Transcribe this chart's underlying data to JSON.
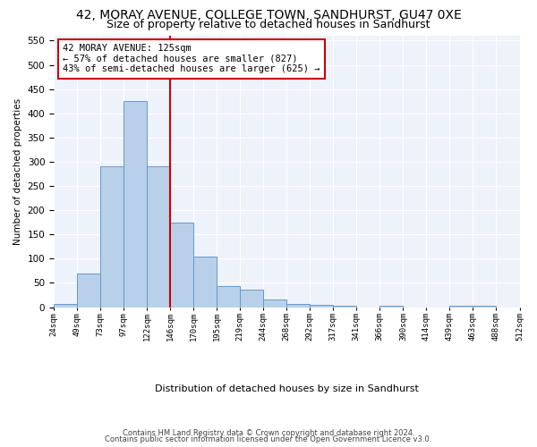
{
  "title1": "42, MORAY AVENUE, COLLEGE TOWN, SANDHURST, GU47 0XE",
  "title2": "Size of property relative to detached houses in Sandhurst",
  "xlabel": "Distribution of detached houses by size in Sandhurst",
  "ylabel": "Number of detached properties",
  "bar_values": [
    7,
    70,
    290,
    425,
    290,
    175,
    105,
    43,
    37,
    15,
    7,
    5,
    2,
    0,
    3,
    0,
    0,
    2,
    2,
    0
  ],
  "bar_labels": [
    "24sqm",
    "49sqm",
    "73sqm",
    "97sqm",
    "122sqm",
    "146sqm",
    "170sqm",
    "195sqm",
    "219sqm",
    "244sqm",
    "268sqm",
    "292sqm",
    "317sqm",
    "341sqm",
    "366sqm",
    "390sqm",
    "414sqm",
    "439sqm",
    "463sqm",
    "488sqm",
    "512sqm"
  ],
  "bar_color": "#b8d0ea",
  "bar_edge_color": "#6699cc",
  "vline_color": "#cc0000",
  "annotation_text": "42 MORAY AVENUE: 125sqm\n← 57% of detached houses are smaller (827)\n43% of semi-detached houses are larger (625) →",
  "annotation_box_color": "#ffffff",
  "annotation_box_edge": "#cc0000",
  "ylim": [
    0,
    560
  ],
  "yticks": [
    0,
    50,
    100,
    150,
    200,
    250,
    300,
    350,
    400,
    450,
    500,
    550
  ],
  "footer1": "Contains HM Land Registry data © Crown copyright and database right 2024.",
  "footer2": "Contains public sector information licensed under the Open Government Licence v3.0.",
  "bg_color": "#eef2fb",
  "title1_fontsize": 10,
  "title2_fontsize": 9
}
